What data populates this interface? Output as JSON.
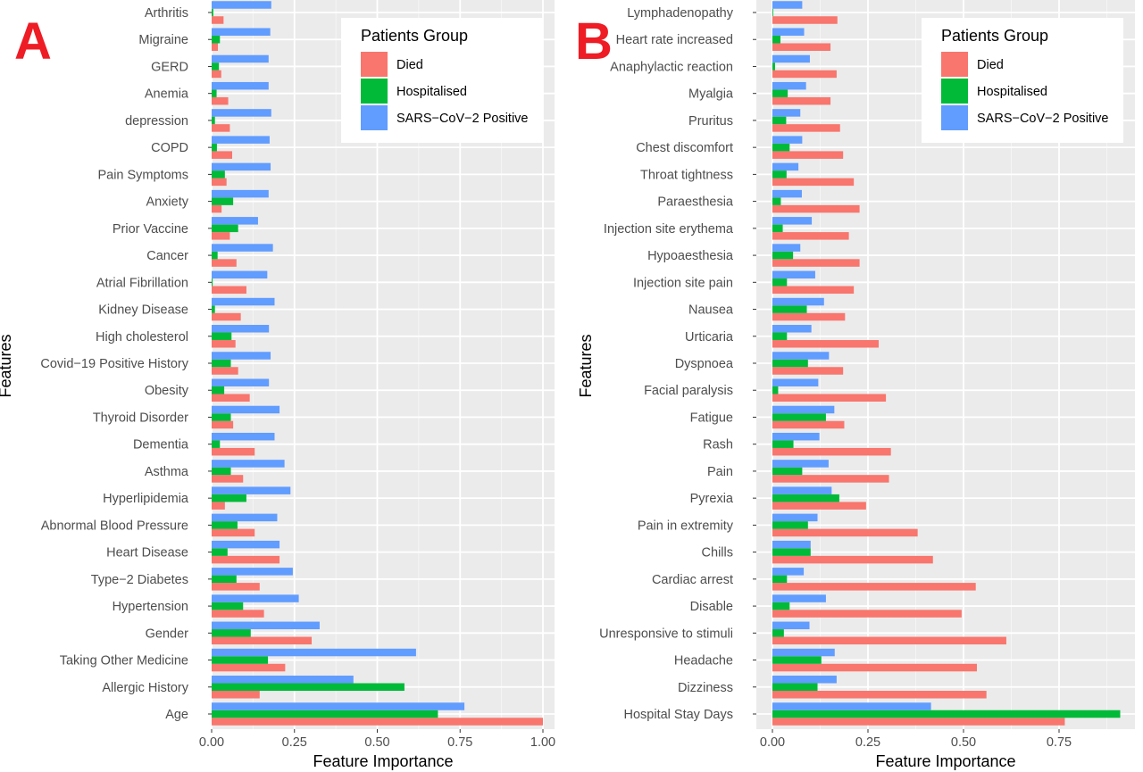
{
  "panels": {
    "a_label": "A",
    "b_label": "B"
  },
  "colors": {
    "letter": "#ee1c25",
    "died": "#f8766d",
    "hospitalised": "#00ba38",
    "positive": "#619cff",
    "panel_bg": "#ebebeb",
    "grid_major": "#ffffff",
    "axis_text": "#4d4d4d"
  },
  "chart_data": [
    {
      "type": "bar",
      "orientation": "horizontal",
      "panel": "A",
      "xlabel": "Feature Importance",
      "ylabel": "Features",
      "xlim": [
        0,
        1.0
      ],
      "xticks": [
        0.0,
        0.25,
        0.5,
        0.75,
        1.0
      ],
      "xtick_labels": [
        "0.00",
        "0.25",
        "0.50",
        "0.75",
        "1.00"
      ],
      "grid": true,
      "legend": {
        "title": "Patients Group",
        "position": "top-right"
      },
      "categories": [
        "Arthritis",
        "Migraine",
        "GERD",
        "Anemia",
        "depression",
        "COPD",
        "Pain Symptoms",
        "Anxiety",
        "Prior Vaccine",
        "Cancer",
        "Atrial Fibrillation",
        "Kidney Disease",
        "High cholesterol",
        "Covid−19 Positive History",
        "Obesity",
        "Thyroid Disorder",
        "Dementia",
        "Asthma",
        "Hyperlipidemia",
        "Abnormal Blood Pressure",
        "Heart Disease",
        "Type−2 Diabetes",
        "Hypertension",
        "Gender",
        "Taking Other Medicine",
        "Allergic History",
        "Age"
      ],
      "series": [
        {
          "name": "Died",
          "values": [
            0.036,
            0.019,
            0.029,
            0.05,
            0.055,
            0.062,
            0.045,
            0.03,
            0.055,
            0.075,
            0.105,
            0.088,
            0.072,
            0.08,
            0.115,
            0.065,
            0.13,
            0.095,
            0.04,
            0.13,
            0.205,
            0.145,
            0.158,
            0.302,
            0.222,
            0.145,
            1.0
          ]
        },
        {
          "name": "Hospitalised",
          "values": [
            0.005,
            0.025,
            0.022,
            0.015,
            0.01,
            0.016,
            0.04,
            0.065,
            0.08,
            0.018,
            0.003,
            0.01,
            0.06,
            0.058,
            0.038,
            0.058,
            0.025,
            0.058,
            0.105,
            0.078,
            0.048,
            0.075,
            0.095,
            0.118,
            0.17,
            0.582,
            0.683
          ]
        },
        {
          "name": "SARS−CoV−2 Positive",
          "values": [
            0.18,
            0.177,
            0.172,
            0.172,
            0.18,
            0.175,
            0.178,
            0.172,
            0.14,
            0.185,
            0.168,
            0.19,
            0.173,
            0.178,
            0.173,
            0.205,
            0.19,
            0.22,
            0.238,
            0.198,
            0.205,
            0.245,
            0.263,
            0.326,
            0.617,
            0.428,
            0.763
          ]
        }
      ]
    },
    {
      "type": "bar",
      "orientation": "horizontal",
      "panel": "B",
      "xlabel": "Feature Importance",
      "ylabel": "Features",
      "xlim": [
        0,
        0.9
      ],
      "xticks": [
        0.0,
        0.25,
        0.5,
        0.75
      ],
      "xtick_labels": [
        "0.00",
        "0.25",
        "0.50",
        "0.75"
      ],
      "grid": true,
      "legend": {
        "title": "Patients Group",
        "position": "top-right"
      },
      "categories": [
        "Lymphadenopathy",
        "Heart rate increased",
        "Anaphylactic reaction",
        "Myalgia",
        "Pruritus",
        "Chest discomfort",
        "Throat tightness",
        "Paraesthesia",
        "Injection site erythema",
        "Hypoaesthesia",
        "Injection site pain",
        "Nausea",
        "Urticaria",
        "Dyspnoea",
        "Facial paralysis",
        "Fatigue",
        "Rash",
        "Pain",
        "Pyrexia",
        "Pain in extremity",
        "Chills",
        "Cardiac arrest",
        "Disable",
        "Unresponsive to stimuli",
        "Headache",
        "Dizziness",
        "Hospital Stay Days"
      ],
      "series": [
        {
          "name": "Died",
          "values": [
            0.17,
            0.152,
            0.168,
            0.152,
            0.177,
            0.185,
            0.213,
            0.228,
            0.2,
            0.228,
            0.213,
            0.19,
            0.278,
            0.185,
            0.297,
            0.188,
            0.31,
            0.305,
            0.245,
            0.38,
            0.42,
            0.532,
            0.495,
            0.612,
            0.535,
            0.56,
            0.765
          ]
        },
        {
          "name": "Hospitalised",
          "values": [
            0.002,
            0.021,
            0.007,
            0.04,
            0.036,
            0.045,
            0.037,
            0.022,
            0.027,
            0.054,
            0.038,
            0.09,
            0.038,
            0.093,
            0.015,
            0.14,
            0.055,
            0.078,
            0.175,
            0.093,
            0.1,
            0.038,
            0.045,
            0.03,
            0.128,
            0.118,
            0.91
          ]
        },
        {
          "name": "SARS−CoV−2 Positive",
          "values": [
            0.078,
            0.083,
            0.098,
            0.088,
            0.073,
            0.078,
            0.068,
            0.077,
            0.103,
            0.073,
            0.112,
            0.135,
            0.102,
            0.148,
            0.12,
            0.162,
            0.123,
            0.147,
            0.155,
            0.118,
            0.1,
            0.082,
            0.14,
            0.097,
            0.163,
            0.168,
            0.415
          ]
        }
      ]
    }
  ]
}
